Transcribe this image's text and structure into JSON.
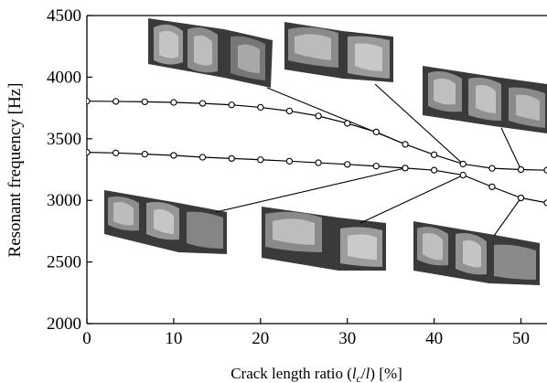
{
  "chart_data": {
    "type": "line",
    "xlabel_prefix": "Crack length ratio (",
    "xlabel_math": "l",
    "xlabel_sub": "c",
    "xlabel_mid": "/",
    "xlabel_math2": "l",
    "xlabel_suffix": ") [%]",
    "ylabel": "Resonant frequency [Hz]",
    "xlim": [
      0,
      53
    ],
    "ylim": [
      2000,
      4500
    ],
    "xticks": [
      0,
      10,
      20,
      30,
      40,
      50
    ],
    "yticks": [
      2000,
      2500,
      3000,
      3500,
      4000,
      4500
    ],
    "grid": false,
    "series": [
      {
        "x": [
          0,
          3.33,
          6.67,
          10,
          13.33,
          16.67,
          20,
          23.33,
          26.67,
          30,
          33.33,
          36.67,
          40,
          43.33,
          46.67,
          50,
          53
        ],
        "values": [
          3805,
          3803,
          3800,
          3795,
          3787,
          3775,
          3755,
          3725,
          3685,
          3625,
          3555,
          3455,
          3370,
          3295,
          3260,
          3250,
          3245
        ]
      },
      {
        "x": [
          0,
          3.33,
          6.67,
          10,
          13.33,
          16.67,
          20,
          23.33,
          26.67,
          30,
          33.33,
          36.67,
          40,
          43.33,
          46.67,
          50,
          53
        ],
        "values": [
          3390,
          3385,
          3375,
          3365,
          3350,
          3340,
          3330,
          3318,
          3305,
          3292,
          3278,
          3262,
          3245,
          3205,
          3110,
          3020,
          2980
        ]
      }
    ],
    "mode_shapes": [
      {
        "name": "mode-shape-top-1",
        "target": [
          36.67,
          3455
        ]
      },
      {
        "name": "mode-shape-top-2",
        "target": [
          43.33,
          3295
        ]
      },
      {
        "name": "mode-shape-top-3",
        "target": [
          50,
          3250
        ]
      },
      {
        "name": "mode-shape-bottom-1",
        "target": [
          36.67,
          3262
        ]
      },
      {
        "name": "mode-shape-bottom-2",
        "target": [
          43.33,
          3205
        ]
      },
      {
        "name": "mode-shape-bottom-3",
        "target": [
          50,
          3020
        ]
      }
    ]
  }
}
